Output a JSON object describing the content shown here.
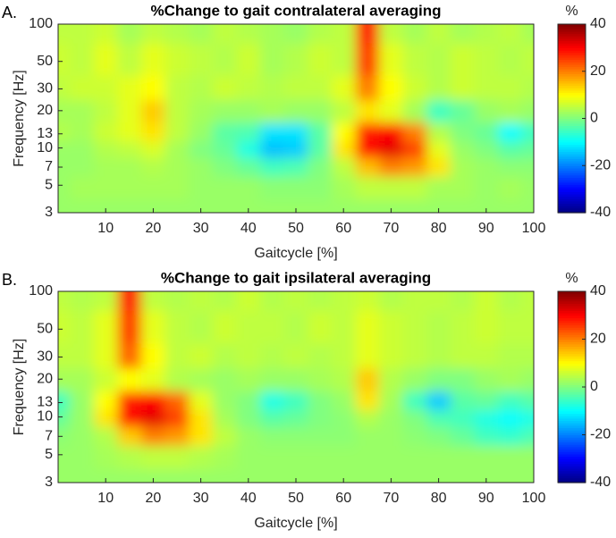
{
  "chart_data": [
    {
      "type": "heatmap",
      "panel_label": "A.",
      "title": "%Change to gait contralateral averaging",
      "xlabel": "Gaitcycle [%]",
      "ylabel": "Frequency [Hz]",
      "x": [
        0,
        5,
        10,
        15,
        20,
        25,
        30,
        35,
        40,
        45,
        50,
        55,
        60,
        65,
        70,
        75,
        80,
        85,
        90,
        95,
        100
      ],
      "y": [
        3,
        5,
        7,
        10,
        13,
        20,
        30,
        50,
        100
      ],
      "z": [
        [
          2,
          2,
          2,
          2,
          2,
          2,
          2,
          2,
          2,
          2,
          2,
          2,
          2,
          2,
          2,
          2,
          2,
          2,
          2,
          2,
          2
        ],
        [
          2,
          3,
          3,
          3,
          3,
          3,
          2,
          2,
          2,
          1,
          1,
          1,
          3,
          5,
          5,
          5,
          3,
          3,
          2,
          3,
          2
        ],
        [
          2,
          2,
          3,
          3,
          4,
          3,
          2,
          0,
          -2,
          -5,
          -4,
          0,
          5,
          15,
          20,
          18,
          12,
          3,
          2,
          1,
          1
        ],
        [
          2,
          2,
          4,
          5,
          7,
          3,
          0,
          -2,
          -8,
          -15,
          -14,
          -3,
          12,
          30,
          32,
          25,
          8,
          2,
          0,
          -3,
          -2
        ],
        [
          4,
          3,
          6,
          8,
          12,
          5,
          2,
          -3,
          -4,
          -12,
          -12,
          -3,
          10,
          28,
          30,
          20,
          4,
          0,
          -2,
          -10,
          -5
        ],
        [
          3,
          3,
          5,
          8,
          14,
          5,
          3,
          2,
          2,
          3,
          2,
          2,
          5,
          12,
          8,
          3,
          -5,
          -2,
          2,
          3,
          2
        ],
        [
          5,
          6,
          6,
          8,
          10,
          5,
          4,
          6,
          5,
          4,
          5,
          5,
          8,
          20,
          10,
          6,
          4,
          6,
          5,
          5,
          4
        ],
        [
          6,
          5,
          8,
          5,
          8,
          6,
          5,
          4,
          6,
          3,
          4,
          6,
          5,
          25,
          8,
          5,
          4,
          6,
          5,
          4,
          5
        ],
        [
          5,
          5,
          6,
          3,
          5,
          4,
          3,
          5,
          4,
          3,
          2,
          4,
          5,
          28,
          5,
          3,
          5,
          3,
          4,
          5,
          3
        ]
      ],
      "xlim": [
        0,
        100
      ],
      "xticks": [
        10,
        20,
        30,
        40,
        50,
        60,
        70,
        80,
        90,
        100
      ],
      "ylim": [
        3,
        100
      ],
      "yticks": [
        3,
        5,
        7,
        10,
        13,
        20,
        30,
        50,
        100
      ],
      "log_y": true,
      "colormap": "jet",
      "colorbar": {
        "label": "%",
        "clim": [
          -40,
          40
        ],
        "ticks": [
          -40,
          -20,
          0,
          20,
          40
        ]
      }
    },
    {
      "type": "heatmap",
      "panel_label": "B.",
      "title": "%Change to gait ipsilateral averaging",
      "xlabel": "Gaitcycle [%]",
      "ylabel": "Frequency [Hz]",
      "x": [
        0,
        5,
        10,
        15,
        20,
        25,
        30,
        35,
        40,
        45,
        50,
        55,
        60,
        65,
        70,
        75,
        80,
        85,
        90,
        95,
        100
      ],
      "y": [
        3,
        5,
        7,
        10,
        13,
        20,
        30,
        50,
        100
      ],
      "z": [
        [
          2,
          2,
          2,
          2,
          2,
          2,
          2,
          2,
          2,
          2,
          2,
          2,
          2,
          2,
          2,
          2,
          2,
          2,
          2,
          2,
          2
        ],
        [
          2,
          2,
          3,
          4,
          5,
          5,
          4,
          3,
          2,
          2,
          2,
          2,
          2,
          2,
          2,
          2,
          2,
          2,
          2,
          2,
          2
        ],
        [
          1,
          2,
          4,
          14,
          20,
          18,
          12,
          5,
          2,
          1,
          1,
          1,
          1,
          2,
          2,
          1,
          0,
          -2,
          -5,
          -6,
          -4
        ],
        [
          -2,
          2,
          12,
          30,
          32,
          25,
          12,
          3,
          0,
          -3,
          -2,
          0,
          1,
          4,
          2,
          0,
          -4,
          -5,
          -8,
          -10,
          -8
        ],
        [
          -5,
          2,
          10,
          28,
          30,
          22,
          8,
          2,
          0,
          -8,
          -5,
          0,
          2,
          12,
          3,
          -5,
          -14,
          -3,
          -2,
          -5,
          -3
        ],
        [
          3,
          3,
          6,
          10,
          8,
          4,
          3,
          2,
          3,
          2,
          2,
          3,
          4,
          14,
          4,
          2,
          0,
          0,
          2,
          3,
          2
        ],
        [
          5,
          5,
          8,
          22,
          10,
          5,
          6,
          4,
          5,
          4,
          5,
          4,
          5,
          8,
          6,
          5,
          4,
          5,
          5,
          4,
          4
        ],
        [
          6,
          5,
          8,
          25,
          8,
          5,
          4,
          6,
          5,
          5,
          4,
          6,
          5,
          8,
          6,
          5,
          4,
          5,
          6,
          5,
          5
        ],
        [
          5,
          4,
          5,
          28,
          5,
          4,
          5,
          4,
          6,
          4,
          5,
          4,
          5,
          6,
          4,
          5,
          5,
          4,
          6,
          4,
          5
        ]
      ],
      "xlim": [
        0,
        100
      ],
      "xticks": [
        10,
        20,
        30,
        40,
        50,
        60,
        70,
        80,
        90,
        100
      ],
      "ylim": [
        3,
        100
      ],
      "yticks": [
        3,
        5,
        7,
        10,
        13,
        20,
        30,
        50,
        100
      ],
      "log_y": true,
      "colormap": "jet",
      "colorbar": {
        "label": "%",
        "clim": [
          -40,
          40
        ],
        "ticks": [
          -40,
          -20,
          0,
          20,
          40
        ]
      }
    }
  ]
}
